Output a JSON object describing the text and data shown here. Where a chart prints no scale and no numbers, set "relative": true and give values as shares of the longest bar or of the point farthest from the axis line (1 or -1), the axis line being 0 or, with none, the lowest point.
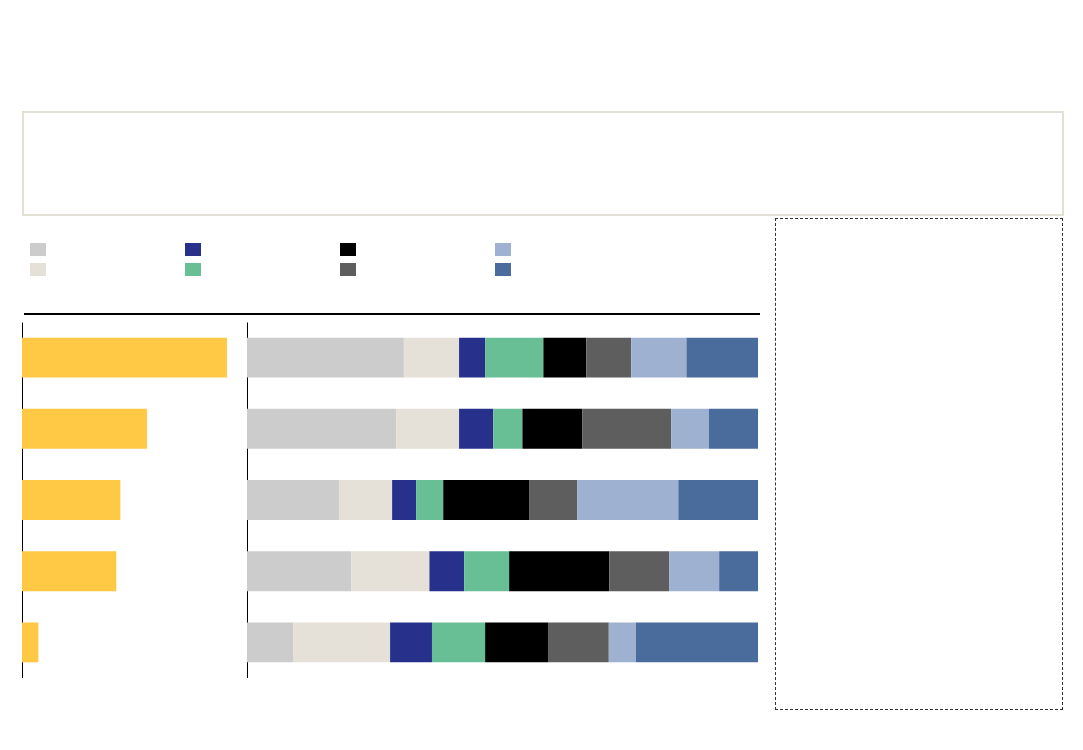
{
  "chart_data": [
    {
      "type": "bar",
      "orientation": "horizontal",
      "relative": true,
      "categories": [
        null,
        null,
        null,
        null,
        null
      ],
      "values": [
        1,
        0.61,
        0.48,
        0.46,
        0.08
      ],
      "color": "#ffc845"
    },
    {
      "type": "bar",
      "orientation": "horizontal",
      "stacked": true,
      "relative": true,
      "categories": [
        null,
        null,
        null,
        null,
        null
      ],
      "series": [
        {
          "color": "#cccccc",
          "values": [
            0.307,
            0.292,
            0.18,
            0.204,
            0.09
          ]
        },
        {
          "color": "#e5e1d8",
          "values": [
            0.108,
            0.123,
            0.104,
            0.153,
            0.19
          ]
        },
        {
          "color": "#27318b",
          "values": [
            0.051,
            0.067,
            0.047,
            0.068,
            0.082
          ]
        },
        {
          "color": "#68bf95",
          "values": [
            0.114,
            0.057,
            0.053,
            0.088,
            0.104
          ]
        },
        {
          "color": "#000000",
          "values": [
            0.084,
            0.117,
            0.168,
            0.196,
            0.123
          ]
        },
        {
          "color": "#5e5e5e",
          "values": [
            0.088,
            0.174,
            0.094,
            0.117,
            0.119
          ]
        },
        {
          "color": "#9fb1d0",
          "values": [
            0.108,
            0.074,
            0.198,
            0.098,
            0.053
          ]
        },
        {
          "color": "#4a6c9c",
          "values": [
            0.14,
            0.096,
            0.156,
            0.076,
            0.239
          ]
        }
      ]
    }
  ]
}
